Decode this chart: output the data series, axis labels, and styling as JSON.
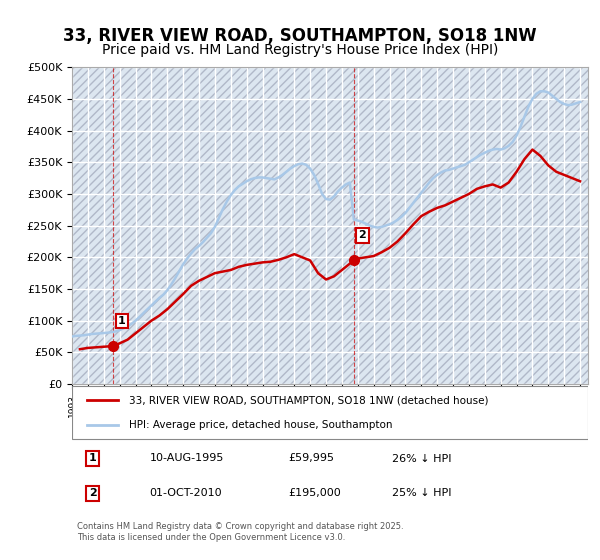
{
  "title": "33, RIVER VIEW ROAD, SOUTHAMPTON, SO18 1NW",
  "subtitle": "Price paid vs. HM Land Registry's House Price Index (HPI)",
  "title_fontsize": 12,
  "subtitle_fontsize": 10,
  "bg_color": "#ffffff",
  "plot_bg_color": "#dce6f0",
  "grid_color": "#ffffff",
  "hpi_color": "#a8c8e8",
  "price_color": "#cc0000",
  "ylim": [
    0,
    500000
  ],
  "yticks": [
    0,
    50000,
    100000,
    150000,
    200000,
    250000,
    300000,
    350000,
    400000,
    450000,
    500000
  ],
  "ytick_labels": [
    "£0",
    "£50K",
    "£100K",
    "£150K",
    "£200K",
    "£250K",
    "£300K",
    "£350K",
    "£400K",
    "£450K",
    "£500K"
  ],
  "xlim_start": 1993.0,
  "xlim_end": 2025.5,
  "marker1_x": 1995.6,
  "marker1_y": 59995,
  "marker1_label": "1",
  "marker2_x": 2010.75,
  "marker2_y": 195000,
  "marker2_label": "2",
  "legend_line1": "33, RIVER VIEW ROAD, SOUTHAMPTON, SO18 1NW (detached house)",
  "legend_line2": "HPI: Average price, detached house, Southampton",
  "table_row1_num": "1",
  "table_row1_date": "10-AUG-1995",
  "table_row1_price": "£59,995",
  "table_row1_hpi": "26% ↓ HPI",
  "table_row2_num": "2",
  "table_row2_date": "01-OCT-2010",
  "table_row2_price": "£195,000",
  "table_row2_hpi": "25% ↓ HPI",
  "footnote": "Contains HM Land Registry data © Crown copyright and database right 2025.\nThis data is licensed under the Open Government Licence v3.0.",
  "hpi_years": [
    1993,
    1993.25,
    1993.5,
    1993.75,
    1994,
    1994.25,
    1994.5,
    1994.75,
    1995,
    1995.25,
    1995.5,
    1995.75,
    1996,
    1996.25,
    1996.5,
    1996.75,
    1997,
    1997.25,
    1997.5,
    1997.75,
    1998,
    1998.25,
    1998.5,
    1998.75,
    1999,
    1999.25,
    1999.5,
    1999.75,
    2000,
    2000.25,
    2000.5,
    2000.75,
    2001,
    2001.25,
    2001.5,
    2001.75,
    2002,
    2002.25,
    2002.5,
    2002.75,
    2003,
    2003.25,
    2003.5,
    2003.75,
    2004,
    2004.25,
    2004.5,
    2004.75,
    2005,
    2005.25,
    2005.5,
    2005.75,
    2006,
    2006.25,
    2006.5,
    2006.75,
    2007,
    2007.25,
    2007.5,
    2007.75,
    2008,
    2008.25,
    2008.5,
    2008.75,
    2009,
    2009.25,
    2009.5,
    2009.75,
    2010,
    2010.25,
    2010.5,
    2010.75,
    2011,
    2011.25,
    2011.5,
    2011.75,
    2012,
    2012.25,
    2012.5,
    2012.75,
    2013,
    2013.25,
    2013.5,
    2013.75,
    2014,
    2014.25,
    2014.5,
    2014.75,
    2015,
    2015.25,
    2015.5,
    2015.75,
    2016,
    2016.25,
    2016.5,
    2016.75,
    2017,
    2017.25,
    2017.5,
    2017.75,
    2018,
    2018.25,
    2018.5,
    2018.75,
    2019,
    2019.25,
    2019.5,
    2019.75,
    2020,
    2020.25,
    2020.5,
    2020.75,
    2021,
    2021.25,
    2021.5,
    2021.75,
    2022,
    2022.25,
    2022.5,
    2022.75,
    2023,
    2023.25,
    2023.5,
    2023.75,
    2024,
    2024.25,
    2024.5,
    2024.75,
    2025
  ],
  "hpi_values": [
    75000,
    76000,
    76500,
    77000,
    78000,
    79000,
    79500,
    80000,
    80500,
    81000,
    82000,
    83000,
    85000,
    88000,
    91000,
    95000,
    100000,
    106000,
    112000,
    118000,
    124000,
    130000,
    136000,
    141000,
    148000,
    157000,
    167000,
    178000,
    189000,
    198000,
    206000,
    213000,
    218000,
    224000,
    231000,
    238000,
    248000,
    262000,
    276000,
    288000,
    298000,
    306000,
    312000,
    316000,
    320000,
    323000,
    325000,
    326000,
    326000,
    325000,
    324000,
    323000,
    326000,
    330000,
    335000,
    340000,
    344000,
    347000,
    348000,
    346000,
    340000,
    330000,
    316000,
    300000,
    292000,
    291000,
    296000,
    304000,
    310000,
    315000,
    318000,
    260000,
    258000,
    256000,
    253000,
    250000,
    248000,
    247000,
    248000,
    250000,
    252000,
    255000,
    259000,
    264000,
    270000,
    278000,
    286000,
    294000,
    302000,
    310000,
    318000,
    325000,
    330000,
    334000,
    337000,
    338000,
    340000,
    342000,
    344000,
    346000,
    350000,
    354000,
    358000,
    362000,
    365000,
    368000,
    370000,
    371000,
    370000,
    372000,
    376000,
    382000,
    392000,
    406000,
    422000,
    438000,
    450000,
    458000,
    462000,
    462000,
    460000,
    455000,
    450000,
    445000,
    442000,
    440000,
    441000,
    443000,
    445000
  ],
  "price_years": [
    1993.5,
    1994,
    1995.6,
    1995.8,
    1996.5,
    1997,
    1997.5,
    1998,
    1998.5,
    1999,
    1999.5,
    2000,
    2000.5,
    2001,
    2002,
    2003,
    2003.5,
    2004,
    2005,
    2005.5,
    2006,
    2006.5,
    2007,
    2007.5,
    2008,
    2008.5,
    2009,
    2009.5,
    2010,
    2010.75,
    2011,
    2011.5,
    2012,
    2012.5,
    2013,
    2013.5,
    2014,
    2014.5,
    2015,
    2015.5,
    2016,
    2016.5,
    2017,
    2017.5,
    2018,
    2018.5,
    2019,
    2019.5,
    2020,
    2020.5,
    2021,
    2021.5,
    2022,
    2022.5,
    2023,
    2023.5,
    2024,
    2024.5,
    2025
  ],
  "price_values": [
    55000,
    57000,
    59995,
    62000,
    70000,
    80000,
    90000,
    100000,
    108000,
    118000,
    130000,
    142000,
    155000,
    163000,
    175000,
    180000,
    185000,
    188000,
    192000,
    193000,
    196000,
    200000,
    205000,
    200000,
    195000,
    175000,
    165000,
    170000,
    180000,
    195000,
    198000,
    200000,
    202000,
    208000,
    215000,
    225000,
    238000,
    252000,
    265000,
    272000,
    278000,
    282000,
    288000,
    294000,
    300000,
    308000,
    312000,
    315000,
    310000,
    318000,
    335000,
    355000,
    370000,
    360000,
    345000,
    335000,
    330000,
    325000,
    320000
  ]
}
